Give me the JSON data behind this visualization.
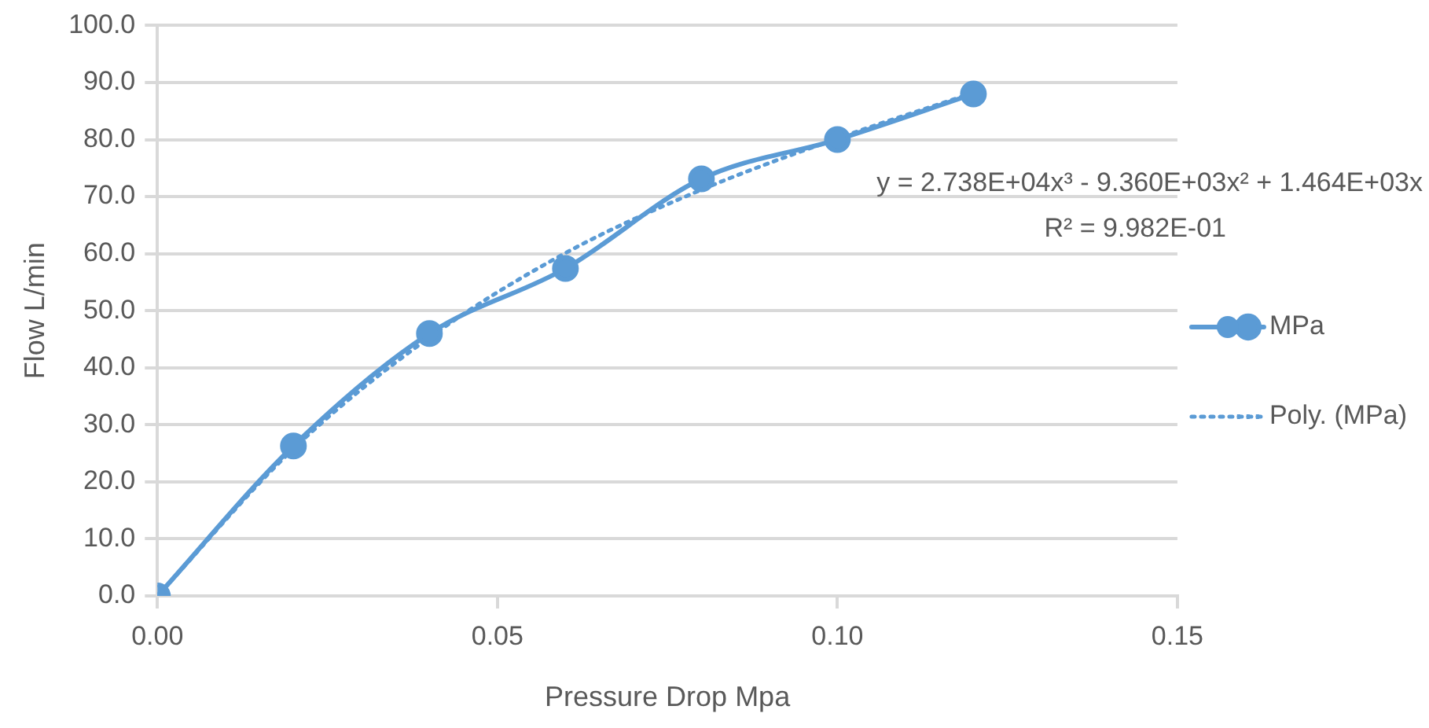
{
  "chart_data": {
    "type": "line",
    "xlabel": "Pressure Drop Mpa",
    "ylabel": "Flow L/min",
    "x": [
      0,
      0.02,
      0.04,
      0.06,
      0.08,
      0.1,
      0.12
    ],
    "series": [
      {
        "name": "MPa",
        "color": "#5b9bd5",
        "values": [
          0,
          26.3,
          46.0,
          57.4,
          73.1,
          80.0,
          88.0
        ],
        "marker": "circle",
        "line_style": "solid"
      },
      {
        "name": "Poly. (MPa)",
        "color": "#5b9bd5",
        "type": "line",
        "x": [
          0,
          0.02,
          0.04,
          0.06,
          0.08,
          0.1,
          0.12
        ],
        "values": [
          0,
          25.8,
          45.3,
          60.1,
          71.2,
          80.2,
          88.2
        ],
        "marker": "none",
        "line_style": "dotted"
      }
    ],
    "xlim": [
      0,
      0.15
    ],
    "xticks": [
      {
        "value": 0,
        "label": "0.00"
      },
      {
        "value": 0.05,
        "label": "0.05"
      },
      {
        "value": 0.1,
        "label": "0.10"
      },
      {
        "value": 0.15,
        "label": "0.15"
      }
    ],
    "ylim": [
      0,
      100
    ],
    "yticks": [
      {
        "value": 0,
        "label": "0.0"
      },
      {
        "value": 10,
        "label": "10.0"
      },
      {
        "value": 20,
        "label": "20.0"
      },
      {
        "value": 30,
        "label": "30.0"
      },
      {
        "value": 40,
        "label": "40.0"
      },
      {
        "value": 50,
        "label": "50.0"
      },
      {
        "value": 60,
        "label": "60.0"
      },
      {
        "value": 70,
        "label": "70.0"
      },
      {
        "value": 80,
        "label": "80.0"
      },
      {
        "value": 90,
        "label": "90.0"
      },
      {
        "value": 100,
        "label": "100.0"
      }
    ],
    "grid": "y",
    "legend": "right",
    "annotations": [
      "y = 2.738E+04x³ - 9.360E+03x² + 1.464E+03x",
      "R² = 9.982E-01"
    ]
  }
}
